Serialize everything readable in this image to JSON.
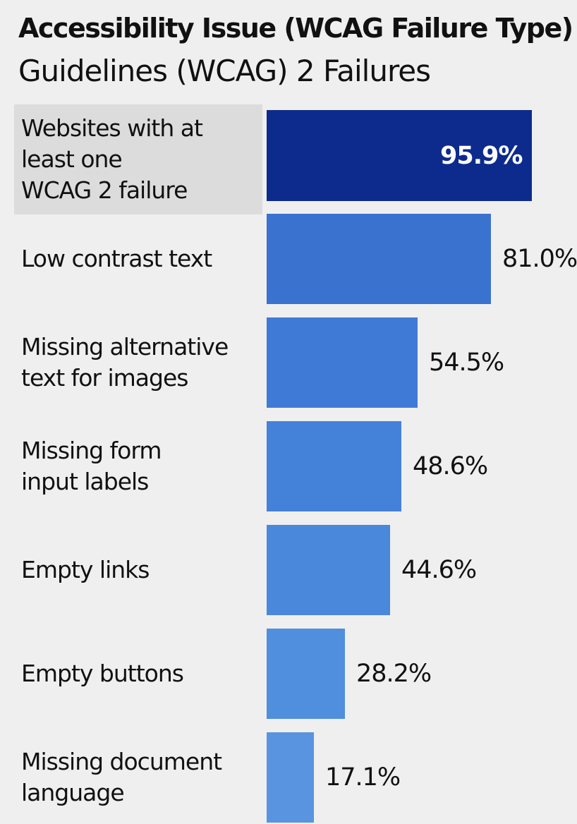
{
  "chart_data": {
    "type": "bar",
    "orientation": "horizontal",
    "title": "Accessibility Issue (WCAG Failure Type)",
    "subtitle": "Guidelines (WCAG) 2 Failures",
    "categories": [
      "Websites with at least one WCAG 2 failure",
      "Low contrast text",
      "Missing alternative text for images",
      "Missing form input labels",
      "Empty links",
      "Empty buttons",
      "Missing document language"
    ],
    "category_lines": [
      [
        "Websites with at",
        "least one",
        "WCAG 2 failure"
      ],
      [
        "Low contrast text"
      ],
      [
        "Missing alternative",
        "text for images"
      ],
      [
        "Missing form",
        "input labels"
      ],
      [
        "Empty links"
      ],
      [
        "Empty buttons"
      ],
      [
        "Missing document",
        "language"
      ]
    ],
    "values": [
      95.9,
      81.0,
      54.5,
      48.6,
      44.6,
      28.2,
      17.1
    ],
    "value_labels": [
      "95.9%",
      "81.0%",
      "54.5%",
      "48.6%",
      "44.6%",
      "28.2%",
      "17.1%"
    ],
    "unit": "%",
    "xlim": [
      0,
      100
    ],
    "grid": false,
    "colors": {
      "highlight_bar": "#0d2b8c",
      "bars": [
        "#3a72cf",
        "#3f7bd6",
        "#4482d9",
        "#4a88dc",
        "#508ede",
        "#5894e0"
      ],
      "highlight_label_bg": "#dcdcdc",
      "background": "#efefef"
    }
  }
}
